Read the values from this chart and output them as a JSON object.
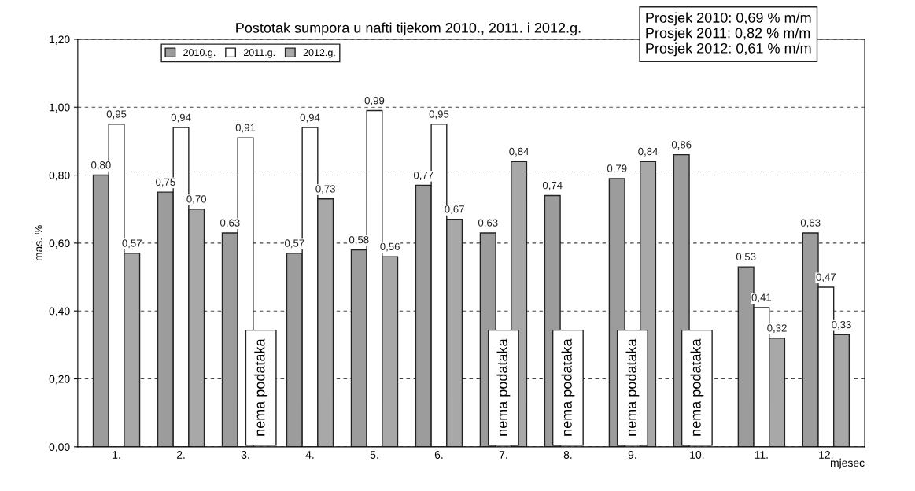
{
  "chart_data": {
    "type": "bar",
    "title": "Postotak sumpora u nafti tijekom 2010., 2011. i 2012.g.",
    "ylabel": "mas. %",
    "xlabel": "mjesec",
    "categories": [
      "1.",
      "2.",
      "3.",
      "4.",
      "5.",
      "6.",
      "7.",
      "8.",
      "9.",
      "10.",
      "11.",
      "12."
    ],
    "series": [
      {
        "name": "2010.g.",
        "color": "#9c9c9c",
        "values": [
          0.8,
          0.75,
          0.63,
          0.57,
          0.58,
          0.77,
          0.63,
          0.74,
          0.79,
          0.86,
          0.53,
          0.63
        ],
        "value_labels": [
          "0,80",
          "0,75",
          "0,63",
          "0,57",
          "0,58",
          "0,77",
          "0,63",
          "0,74",
          "0,79",
          "0,86",
          "0,53",
          "0,63"
        ]
      },
      {
        "name": "2011.g.",
        "color": "#ffffff",
        "values": [
          0.95,
          0.94,
          0.91,
          0.94,
          0.99,
          0.95,
          null,
          null,
          null,
          null,
          0.41,
          0.47
        ],
        "value_labels": [
          "0,95",
          "0,94",
          "0,91",
          "0,94",
          "0,99",
          "0,95",
          null,
          null,
          null,
          null,
          "0,41",
          "0,47"
        ]
      },
      {
        "name": "2012.g.",
        "color": "#a8a8a8",
        "values": [
          0.57,
          0.7,
          null,
          0.73,
          0.56,
          0.67,
          0.84,
          null,
          0.84,
          null,
          0.32,
          0.33
        ],
        "value_labels": [
          "0,57",
          "0,70",
          null,
          "0,73",
          "0,56",
          "0,67",
          "0,84",
          null,
          "0,84",
          null,
          "0,32",
          "0,33"
        ]
      }
    ],
    "ylim": [
      0,
      1.2
    ],
    "yticks": [
      {
        "value": 0,
        "label": "0,00"
      },
      {
        "value": 0.2,
        "label": "0,20"
      },
      {
        "value": 0.4,
        "label": "0,40"
      },
      {
        "value": 0.6,
        "label": "0,60"
      },
      {
        "value": 0.8,
        "label": "0,80"
      },
      {
        "value": 1.0,
        "label": "1,00"
      },
      {
        "value": 1.2,
        "label": "1,20"
      }
    ],
    "grid": "y",
    "legend": "top left",
    "annotations": [
      "Prosjek 2010: 0,69 % m/m\nProsjek 2011: 0,82 % m/m\nProsjek 2012: 0,61 % m/m",
      "nema podataka",
      "nema podataka",
      "nema podataka",
      "nema podataka",
      "nema podataka"
    ]
  }
}
